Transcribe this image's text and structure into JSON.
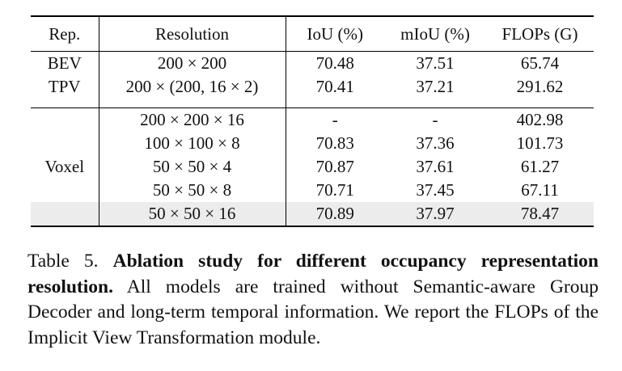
{
  "table": {
    "headers": [
      "Rep.",
      "Resolution",
      "IoU (%)",
      "mIoU (%)",
      "FLOPs (G)"
    ],
    "rows": [
      {
        "rep": "BEV",
        "res": "200 × 200",
        "iou": "70.48",
        "miou": "37.51",
        "flops": "65.74"
      },
      {
        "rep": "TPV",
        "res": "200 × (200, 16 × 2)",
        "iou": "70.41",
        "miou": "37.21",
        "flops": "291.62"
      },
      {
        "rep": "",
        "res": "200 × 200 × 16",
        "iou": "-",
        "miou": "-",
        "flops": "402.98"
      },
      {
        "rep": "",
        "res": "100 × 100 × 8",
        "iou": "70.83",
        "miou": "37.36",
        "flops": "101.73"
      },
      {
        "rep": "Voxel",
        "res": "50 × 50 × 4",
        "iou": "70.87",
        "miou": "37.61",
        "flops": "61.27"
      },
      {
        "rep": "",
        "res": "50 × 50 × 8",
        "iou": "70.71",
        "miou": "37.45",
        "flops": "67.11"
      },
      {
        "rep": "",
        "res": "50 × 50 × 16",
        "iou": "70.89",
        "miou": "37.97",
        "flops": "78.47"
      }
    ]
  },
  "caption": {
    "label": "Table 5.",
    "title": "Ablation study for different occupancy representation resolution.",
    "body": "All models are trained without Semantic-aware Group Decoder and long-term temporal information. We report the FLOPs of the Implicit View Transformation module."
  }
}
